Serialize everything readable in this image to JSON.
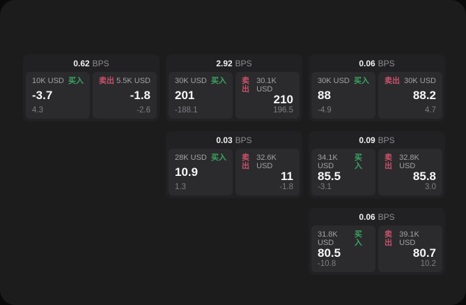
{
  "colors": {
    "page_background": "#0a0a0a",
    "panel_background": "#1c1c1d",
    "card_background": "#212123",
    "tile_background": "#2b2b2d",
    "buy_green": "#3aa564",
    "sell_red": "#c8516a",
    "value_white": "#f7f7f9",
    "label_gray": "#a3a3a8",
    "delta_gray": "#7f7f85"
  },
  "labels": {
    "bps_unit": "BPS",
    "buy": "买入",
    "sell": "卖出"
  },
  "cards": [
    {
      "bps": "0.62",
      "grid": {
        "row": 1,
        "col": 1
      },
      "buy": {
        "amount": "10K USD",
        "side": "买入",
        "value": "-3.7",
        "delta": "4.3"
      },
      "sell": {
        "amount": "5.5K USD",
        "side": "卖出",
        "value": "-1.8",
        "delta": "-2.6"
      }
    },
    {
      "bps": "2.92",
      "grid": {
        "row": 1,
        "col": 2
      },
      "buy": {
        "amount": "30K USD",
        "side": "买入",
        "value": "201",
        "delta": "-188.1"
      },
      "sell": {
        "amount": "30.1K USD",
        "side": "卖出",
        "value": "210",
        "delta": "196.5"
      }
    },
    {
      "bps": "0.06",
      "grid": {
        "row": 1,
        "col": 3
      },
      "buy": {
        "amount": "30K USD",
        "side": "买入",
        "value": "88",
        "delta": "-4.9"
      },
      "sell": {
        "amount": "30K USD",
        "side": "卖出",
        "value": "88.2",
        "delta": "4.7"
      }
    },
    {
      "bps": "0.03",
      "grid": {
        "row": 2,
        "col": 2
      },
      "buy": {
        "amount": "28K USD",
        "side": "买入",
        "value": "10.9",
        "delta": "1.3"
      },
      "sell": {
        "amount": "32.6K USD",
        "side": "卖出",
        "value": "11",
        "delta": "-1.8"
      }
    },
    {
      "bps": "0.09",
      "grid": {
        "row": 2,
        "col": 3
      },
      "buy": {
        "amount": "34.1K USD",
        "side": "买入",
        "value": "85.5",
        "delta": "-3.1"
      },
      "sell": {
        "amount": "32.8K USD",
        "side": "卖出",
        "value": "85.8",
        "delta": "3.0"
      }
    },
    {
      "bps": "0.06",
      "grid": {
        "row": 3,
        "col": 3
      },
      "buy": {
        "amount": "31.8K USD",
        "side": "买入",
        "value": "80.5",
        "delta": "-10.8"
      },
      "sell": {
        "amount": "39.1K USD",
        "side": "卖出",
        "value": "80.7",
        "delta": "10.2"
      }
    }
  ]
}
